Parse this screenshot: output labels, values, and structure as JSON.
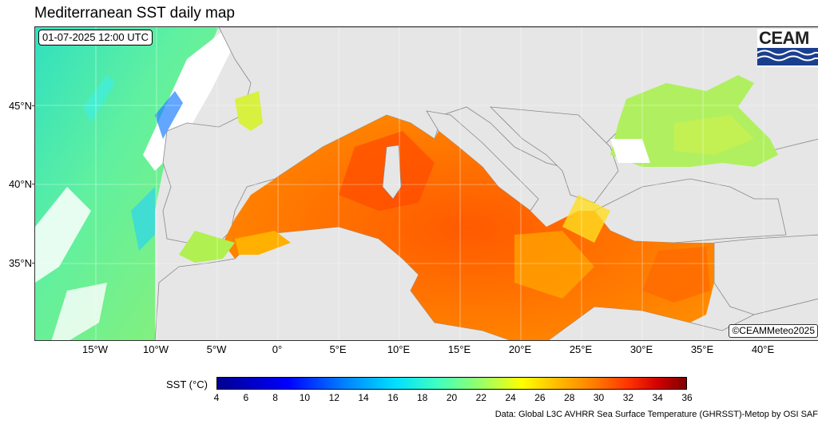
{
  "title": "Mediterranean SST daily map",
  "timestamp": "01-07-2025 12:00 UTC",
  "watermark": "©CEAMMeteo2025",
  "logo_text": "CEAM",
  "axes": {
    "lat_labels": [
      "45°N",
      "40°N",
      "35°N"
    ],
    "lon_labels": [
      "15°W",
      "10°W",
      "5°W",
      "0°",
      "5°E",
      "10°E",
      "15°E",
      "20°E",
      "25°E",
      "30°E",
      "35°E",
      "40°E"
    ]
  },
  "colorbar": {
    "label": "SST (°C)",
    "ticks": [
      "4",
      "6",
      "8",
      "10",
      "12",
      "14",
      "16",
      "18",
      "20",
      "22",
      "24",
      "26",
      "28",
      "30",
      "32",
      "34",
      "36"
    ],
    "range": [
      4,
      36
    ]
  },
  "source": "Data: Global L3C AVHRR Sea Surface Temperature (GHRSST)-Metop by OSI SAF",
  "colors": {
    "land": "#e6e6e6",
    "no_data": "#ffffff",
    "sst_cold": "#00008f",
    "sst_warm": "#800000"
  }
}
